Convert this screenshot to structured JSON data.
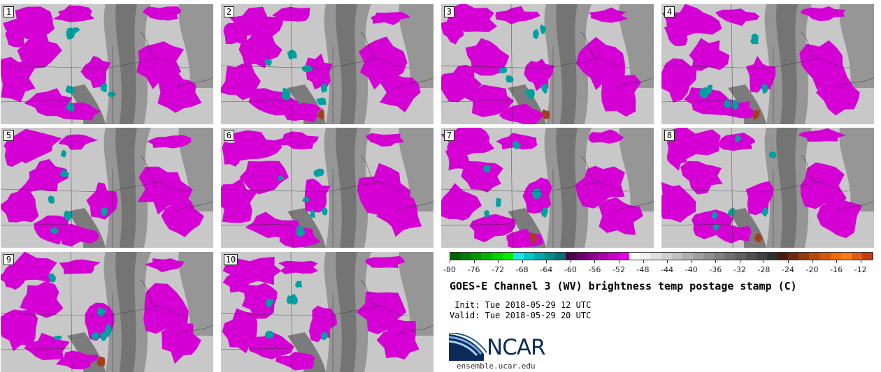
{
  "panels": [
    {
      "label": "1"
    },
    {
      "label": "2"
    },
    {
      "label": "3"
    },
    {
      "label": "4"
    },
    {
      "label": "5"
    },
    {
      "label": "6"
    },
    {
      "label": "7"
    },
    {
      "label": "8"
    },
    {
      "label": "9"
    },
    {
      "label": "10"
    }
  ],
  "colorbar": {
    "ticks": [
      "-80",
      "-76",
      "-72",
      "-68",
      "-64",
      "-60",
      "-56",
      "-52",
      "-48",
      "-44",
      "-40",
      "-36",
      "-32",
      "-28",
      "-24",
      "-20",
      "-16",
      "-12"
    ],
    "range": [
      -80,
      -10
    ],
    "colors": [
      "#006400",
      "#007a00",
      "#009600",
      "#00b400",
      "#00d200",
      "#00ee00",
      "#19e6e6",
      "#00c8c8",
      "#00aaaa",
      "#008c8c",
      "#007070",
      "#4b004b",
      "#6e006e",
      "#8c008c",
      "#aa00aa",
      "#c800c8",
      "#e600e6",
      "#ffffff",
      "#f0f0f0",
      "#e0e0e0",
      "#d0d0d0",
      "#c0c0c0",
      "#b0b0b0",
      "#a0a0a0",
      "#909090",
      "#808080",
      "#707070",
      "#606060",
      "#505050",
      "#404040",
      "#303030",
      "#4a1a0a",
      "#6e2a10",
      "#94380e",
      "#b8470c",
      "#d8560a",
      "#f06a08",
      "#f88010",
      "#e05a18",
      "#c83c14"
    ]
  },
  "title": "GOES-E Channel 3 (WV) brightness temp postage stamp (C)",
  "init_line": " Init: Tue 2018-05-29 12 UTC",
  "valid_line": "Valid: Tue 2018-05-29 20 UTC",
  "logo": {
    "text": "NCAR",
    "url": "ensemble.ucar.edu"
  },
  "palette": {
    "magenta": "#d400d4",
    "teal": "#00a0a0",
    "rust": "#a04020",
    "gray_light": "#c8c8c8",
    "gray_mid": "#969696",
    "gray_dark": "#5a5a5a"
  }
}
